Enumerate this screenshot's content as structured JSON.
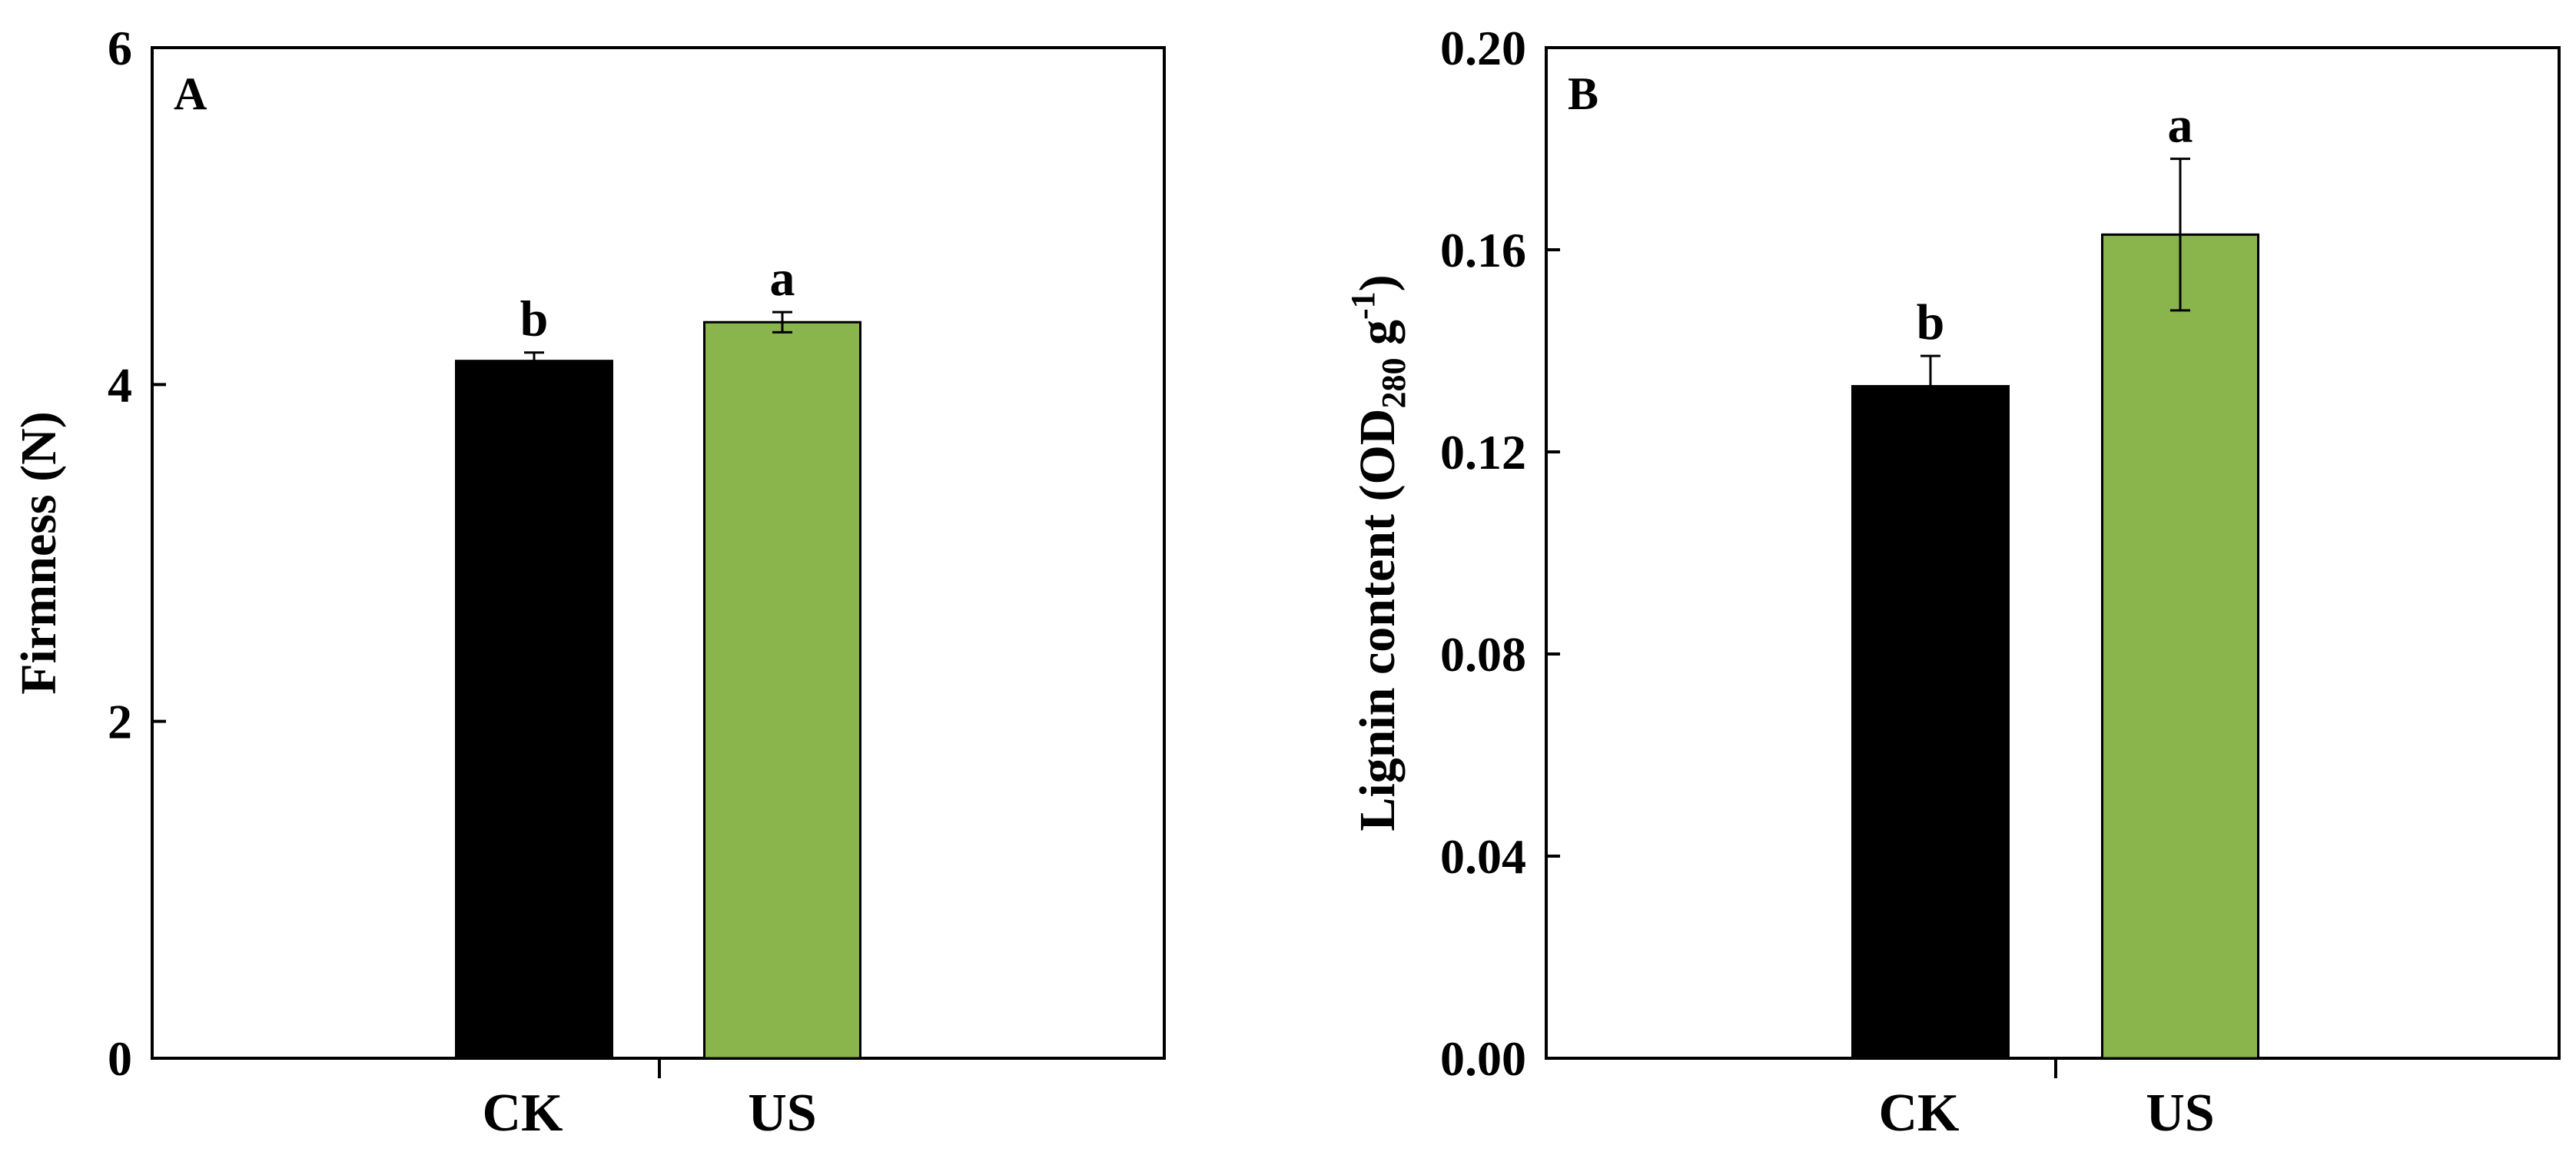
{
  "chart_data": [
    {
      "type": "bar",
      "panel_label": "A",
      "categories": [
        "CK",
        "US"
      ],
      "values": [
        4.14,
        4.37
      ],
      "errors": [
        0.05,
        0.06
      ],
      "significance": [
        "b",
        "a"
      ],
      "colors": [
        "#000000",
        "#8ab44c"
      ],
      "ylabel": "Firmness (N)",
      "ylim": [
        0,
        6
      ],
      "yticks": [
        "0",
        "2",
        "4",
        "6"
      ],
      "ytick_values": [
        0,
        2,
        4,
        6
      ]
    },
    {
      "type": "bar",
      "panel_label": "B",
      "categories": [
        "CK",
        "US"
      ],
      "values": [
        0.133,
        0.163
      ],
      "errors": [
        0.006,
        0.015
      ],
      "significance": [
        "b",
        "a"
      ],
      "colors": [
        "#000000",
        "#8ab44c"
      ],
      "ylabel_main": "Lignin content (OD",
      "ylabel_sub": "280",
      "ylabel_mid": " g",
      "ylabel_sup": "-1",
      "ylabel_end": ")",
      "ylim": [
        0,
        0.2
      ],
      "yticks": [
        "0.00",
        "0.04",
        "0.08",
        "0.12",
        "0.16",
        "0.20"
      ],
      "ytick_values": [
        0,
        0.04,
        0.08,
        0.12,
        0.16,
        0.2
      ]
    }
  ]
}
